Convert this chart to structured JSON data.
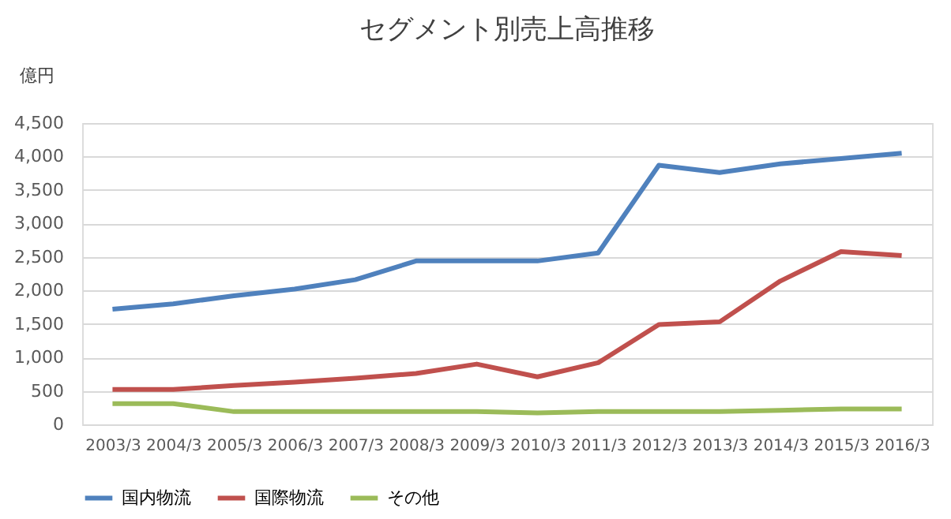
{
  "chart_data": {
    "type": "line",
    "title": "セグメント別売上高推移",
    "ylabel": "億円",
    "categories": [
      "2003/3",
      "2004/3",
      "2005/3",
      "2006/3",
      "2007/3",
      "2008/3",
      "2009/3",
      "2010/3",
      "2011/3",
      "2012/3",
      "2013/3",
      "2014/3",
      "2015/3",
      "2016/3"
    ],
    "series": [
      {
        "name": "国内物流",
        "color": "#4f81bd",
        "values": [
          1720,
          1800,
          1920,
          2020,
          2160,
          2440,
          2440,
          2440,
          2560,
          3870,
          3760,
          3890,
          3970,
          4050
        ]
      },
      {
        "name": "国際物流",
        "color": "#c0504d",
        "values": [
          520,
          520,
          580,
          630,
          690,
          760,
          900,
          710,
          920,
          1490,
          1530,
          2140,
          2580,
          2520
        ]
      },
      {
        "name": "その他",
        "color": "#9bbb59",
        "values": [
          310,
          310,
          190,
          190,
          190,
          190,
          190,
          170,
          190,
          190,
          190,
          210,
          230,
          230
        ]
      }
    ],
    "ylim": [
      0,
      4500
    ],
    "yticks": [
      0,
      500,
      {
        "value": 1000,
        "label": "1,000"
      },
      {
        "value": 1500,
        "label": "1,500"
      },
      {
        "value": 2000,
        "label": "2,000"
      },
      {
        "value": 2500,
        "label": "2,500"
      },
      {
        "value": 3000,
        "label": "3,000"
      },
      {
        "value": 3500,
        "label": "3,500"
      },
      {
        "value": 4000,
        "label": "4,000"
      },
      {
        "value": 4500,
        "label": "4,500"
      }
    ],
    "grid": "y",
    "legend": "bottom",
    "marker": "none",
    "line_style": "solid"
  }
}
